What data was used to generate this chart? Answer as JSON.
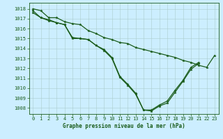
{
  "title": "Graphe pression niveau de la mer (hPa)",
  "background_color": "#cceeff",
  "grid_color": "#aacccc",
  "line_color": "#1a5c1a",
  "xlim_min": -0.5,
  "xlim_max": 23.5,
  "ylim_min": 1007.4,
  "ylim_max": 1018.6,
  "xticks": [
    0,
    1,
    2,
    3,
    4,
    5,
    6,
    7,
    8,
    9,
    10,
    11,
    12,
    13,
    14,
    15,
    16,
    17,
    18,
    19,
    20,
    21,
    22,
    23
  ],
  "yticks": [
    1008,
    1009,
    1010,
    1011,
    1012,
    1013,
    1014,
    1015,
    1016,
    1017,
    1018
  ],
  "s1_x": [
    0,
    1,
    2,
    3,
    4,
    5,
    6,
    7,
    8,
    9,
    10,
    11,
    12,
    13,
    14,
    15,
    16,
    17,
    18,
    19,
    20,
    21,
    22,
    23
  ],
  "s1_y": [
    1018.0,
    1017.8,
    1017.1,
    1017.1,
    1016.7,
    1016.5,
    1016.4,
    1015.8,
    1015.5,
    1015.1,
    1014.9,
    1014.6,
    1014.5,
    1014.1,
    1013.9,
    1013.7,
    1013.5,
    1013.3,
    1013.1,
    1012.8,
    1012.6,
    1012.3,
    1012.1,
    1013.3
  ],
  "s2_x": [
    0,
    1,
    2,
    3,
    4,
    5,
    6,
    7,
    8,
    9,
    10,
    11,
    12,
    13,
    14,
    15,
    16,
    17,
    18,
    19,
    20,
    21
  ],
  "s2_y": [
    1017.8,
    1017.1,
    1016.9,
    1016.6,
    1016.4,
    1015.0,
    1015.0,
    1014.9,
    1014.3,
    1013.8,
    1013.0,
    1011.1,
    1010.3,
    1009.4,
    1007.8,
    1007.7,
    1008.2,
    1008.5,
    1009.6,
    1010.7,
    1011.9,
    1012.5
  ],
  "s3_x": [
    0,
    1,
    2,
    3,
    4,
    5,
    6,
    7,
    8,
    9,
    10,
    11,
    12,
    13,
    14,
    15,
    16,
    17,
    18,
    19,
    20,
    21
  ],
  "s3_y": [
    1017.6,
    1017.1,
    1016.8,
    1016.6,
    1016.4,
    1015.1,
    1015.0,
    1014.9,
    1014.3,
    1013.9,
    1013.1,
    1011.2,
    1010.4,
    1009.5,
    1007.8,
    1007.8,
    1008.3,
    1008.7,
    1009.8,
    1010.8,
    1012.1,
    1012.6
  ],
  "tick_fontsize": 5.0,
  "label_fontsize": 5.5,
  "linewidth": 0.9,
  "markersize": 2.5
}
